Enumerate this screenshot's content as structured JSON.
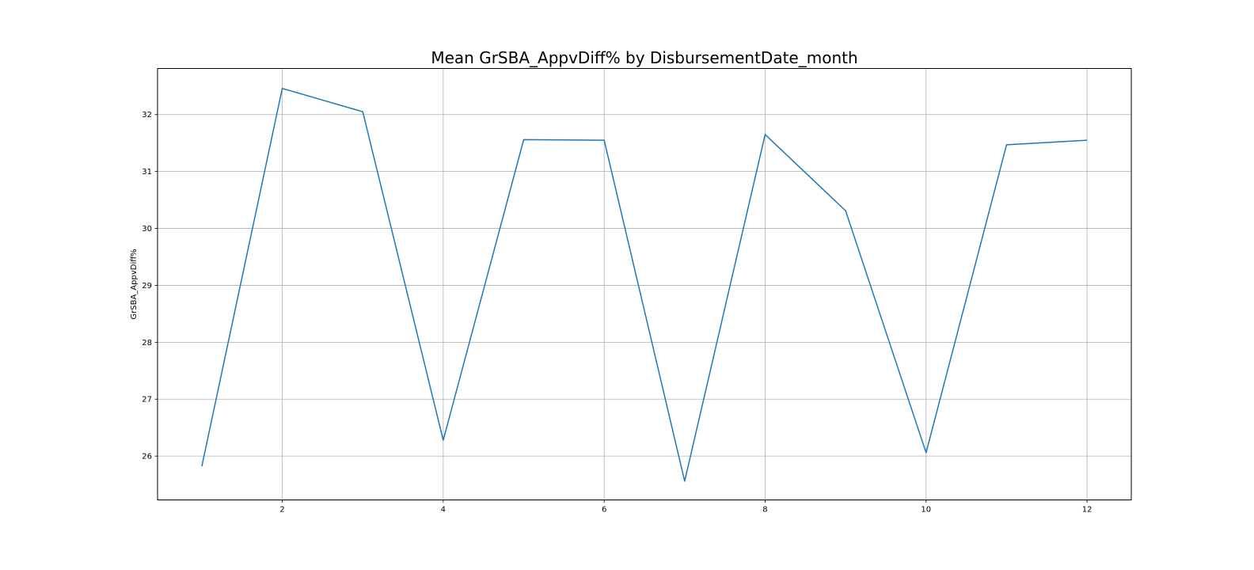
{
  "chart_data": {
    "type": "line",
    "title": "Mean GrSBA_AppvDiff% by DisbursementDate_month",
    "xlabel": "",
    "ylabel": "GrSBA_AppvDiff%",
    "x": [
      1,
      2,
      3,
      4,
      5,
      6,
      7,
      8,
      9,
      10,
      11,
      12
    ],
    "series": [
      {
        "values": [
          25.82,
          32.46,
          32.05,
          26.28,
          31.56,
          31.55,
          25.56,
          31.65,
          30.31,
          26.06,
          31.47,
          31.55
        ]
      }
    ],
    "xticks": [
      "2",
      "4",
      "6",
      "8",
      "10",
      "12"
    ],
    "yticks": [
      "26",
      "27",
      "28",
      "29",
      "30",
      "31",
      "32"
    ],
    "xlim": [
      0.45,
      12.55
    ],
    "ylim": [
      25.23,
      32.81
    ],
    "grid": true,
    "colors": {
      "line": "#1f77b4",
      "grid": "#b0b0b0",
      "axes": "#000000"
    }
  }
}
